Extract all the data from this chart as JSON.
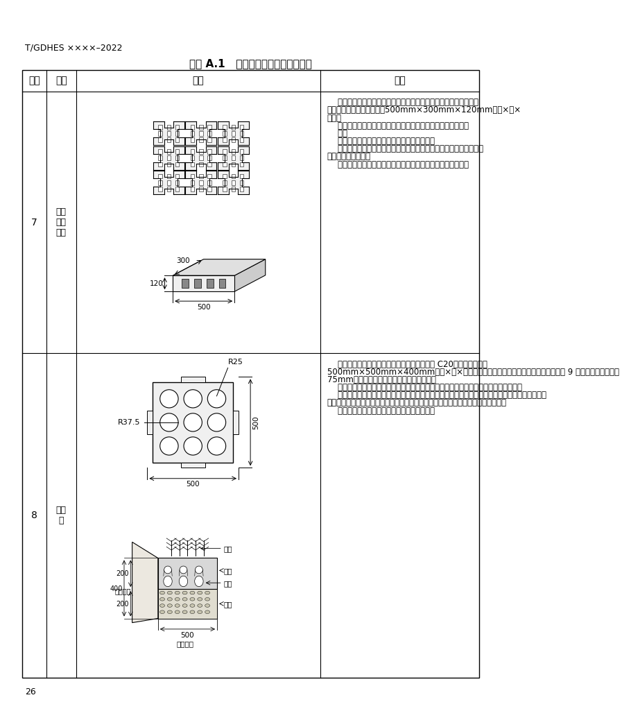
{
  "page_title": "T/GDHES ××××–2022",
  "table_title": "续表 A.1   常用生态护岸材料及特性表",
  "h0": "序号",
  "h1": "类型",
  "h2": "图样",
  "h3": "特性",
  "r7_num": "7",
  "r7_type": "连锁\n式植\n草砖",
  "r7_lines": [
    "    连锁式植草砖护岸由多个植草砖连锁布置，构成整体的连锁结构，",
    "槽孔内填土植草。砖尺寸为500mm×300mm×120mm（长×宽×",
    "高）。",
    "    该护岸型式施工便捷，无需砂浆勾缝等工序，直接安装即可。",
    "    优点",
    "    形式多样，景观性及植生性均较好，易施工。",
    "    缺点：要求河堤坡度不能过大，坡度足够平顺、密实，否则易滑落、",
    "凹陷地带成片损坏；",
    "    成本较高，且不适合沙质土层，不适合河岸弯曲较多的河道。"
  ],
  "r8_num": "8",
  "r8_type": "瓶孔\n砖",
  "r8_lines": [
    "    瓶孔砖材料为混凝土，混凝土强度等级不小于 C20，一般尺寸为：",
    "500mm×500mm×400mm（长×宽×高）。砖两侧布置自嵌凸缘结构，砖体均匀布置 9 个小孔，孔口直径为",
    "75mm，孔剔面为瓶子状，底部铺设碎石层。",
    "    该护岸型式既固化岸坡，又留出植物通道，基层土壤的植物可穿过碎石层由孔口长出。",
    "    优点：自嵌式的设计可增强铺装后护坡的整体性，增强护坡的抗冲刷能力。在孔内种植植物，使护",
    "坡面得到绻化，砖孔也可成为海岸洞居动物的洞穴，将提升护坡的生态性及景观性。",
    "    缺点：费用较高，种植生长期需要加强管理。"
  ],
  "page_num": "26",
  "bg": "#ffffff",
  "lc": "#000000",
  "TL": 35,
  "TR": 885,
  "TT": 125,
  "TB": 1263,
  "c0": 80,
  "c1": 135,
  "c2": 590,
  "HR": 40,
  "r7b": 655
}
